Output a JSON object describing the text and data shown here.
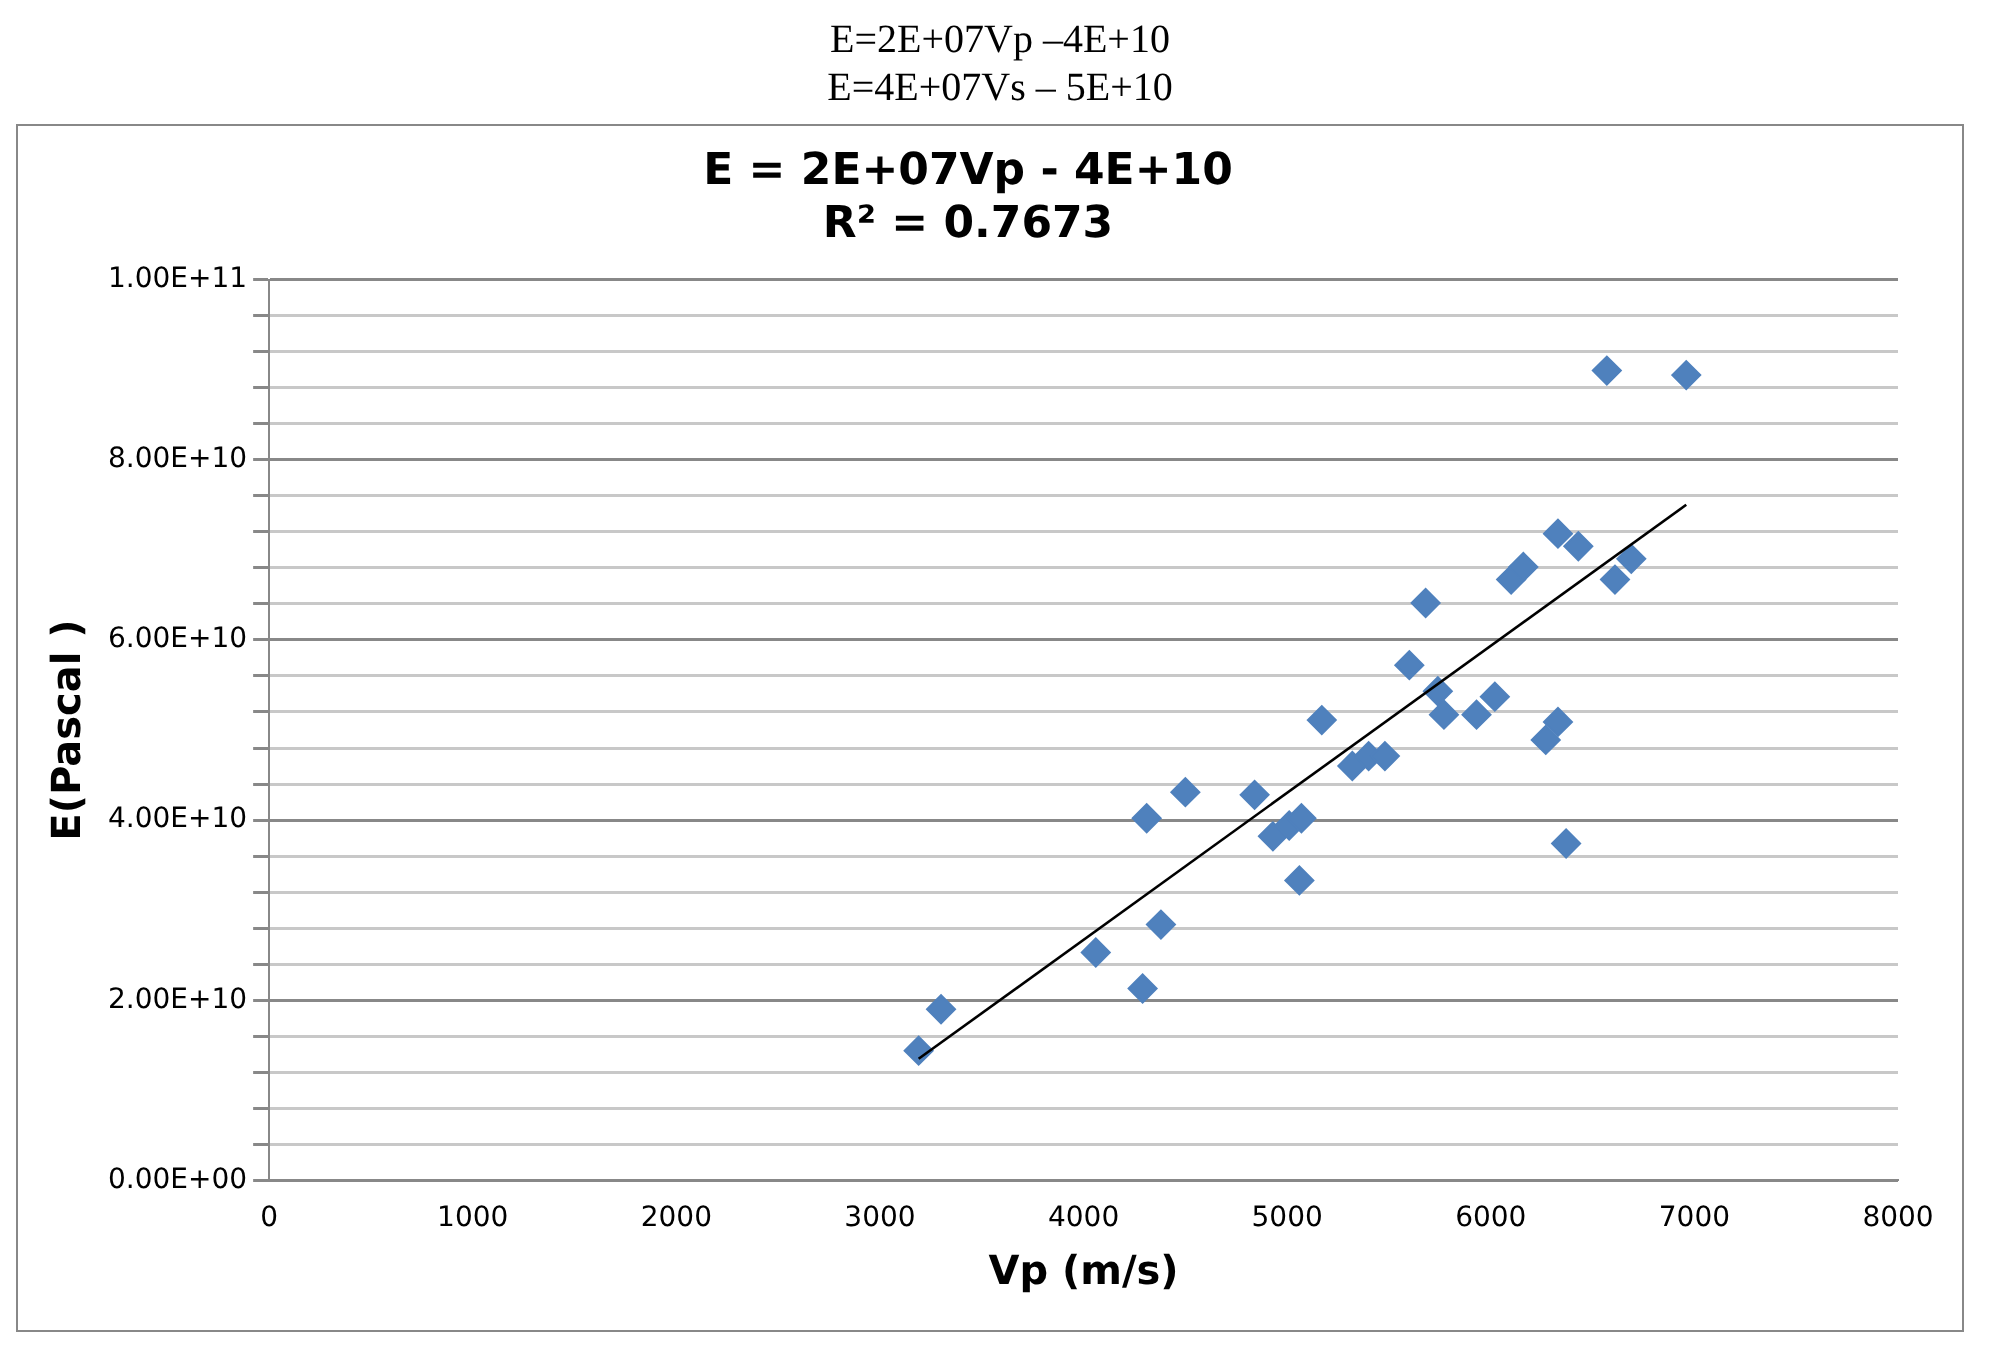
{
  "chart_data": {
    "type": "scatter",
    "title": "E = 2E+07Vp - 4E+10",
    "subtitle": "R² = 0.7673",
    "xlabel": "Vp (m/s)",
    "ylabel": "E(Pascal )",
    "annotations": [
      "E=2E+07Vp –4E+10",
      "E=4E+07Vs – 5E+10"
    ],
    "xlim": [
      0,
      8000
    ],
    "xticks": [
      0,
      1000,
      2000,
      3000,
      4000,
      5000,
      6000,
      7000,
      8000
    ],
    "ylim": [
      0,
      100000000000
    ],
    "yticks": [
      {
        "value": 0,
        "label": "0.00E+00"
      },
      {
        "value": 4000000000,
        "label": null
      },
      {
        "value": 8000000000,
        "label": null
      },
      {
        "value": 12000000000,
        "label": null
      },
      {
        "value": 16000000000,
        "label": null
      },
      {
        "value": 20000000000,
        "label": "2.00E+10"
      },
      {
        "value": 24000000000,
        "label": null
      },
      {
        "value": 28000000000,
        "label": null
      },
      {
        "value": 32000000000,
        "label": null
      },
      {
        "value": 36000000000,
        "label": null
      },
      {
        "value": 40000000000,
        "label": "4.00E+10"
      },
      {
        "value": 44000000000,
        "label": null
      },
      {
        "value": 48000000000,
        "label": null
      },
      {
        "value": 52000000000,
        "label": null
      },
      {
        "value": 56000000000,
        "label": null
      },
      {
        "value": 60000000000,
        "label": "6.00E+10"
      },
      {
        "value": 64000000000,
        "label": null
      },
      {
        "value": 68000000000,
        "label": null
      },
      {
        "value": 72000000000,
        "label": null
      },
      {
        "value": 76000000000,
        "label": null
      },
      {
        "value": 80000000000,
        "label": "8.00E+10"
      },
      {
        "value": 84000000000,
        "label": null
      },
      {
        "value": 88000000000,
        "label": null
      },
      {
        "value": 92000000000,
        "label": null
      },
      {
        "value": 96000000000,
        "label": null
      },
      {
        "value": 100000000000,
        "label": "1.00E+11"
      }
    ],
    "grid": "y",
    "legend": false,
    "marker": "diamond",
    "series": [
      {
        "color": "#4f81bd",
        "x": [
          3190,
          3300,
          4060,
          4290,
          4310,
          4380,
          4500,
          4840,
          4930,
          5010,
          5070,
          5060,
          5170,
          5320,
          5400,
          5480,
          5600,
          5680,
          5740,
          5770,
          5930,
          6020,
          6100,
          6160,
          6330,
          6430,
          6690,
          6610,
          6330,
          6270,
          6370,
          6570,
          6960
        ],
        "values": [
          14400000000,
          19000000000,
          25300000000,
          21300000000,
          40200000000,
          28400000000,
          43100000000,
          42800000000,
          38200000000,
          39400000000,
          40200000000,
          33300000000,
          51100000000,
          46000000000,
          47100000000,
          47100000000,
          57200000000,
          64100000000,
          54300000000,
          51700000000,
          51700000000,
          53700000000,
          66700000000,
          68100000000,
          71800000000,
          70400000000,
          69000000000,
          66700000000,
          50900000000,
          48900000000,
          37400000000,
          89900000000,
          89400000000
        ]
      },
      {
        "type": "line",
        "color": "#000000",
        "marker": "none",
        "x": [
          3190,
          6960
        ],
        "values": [
          13500000000,
          75000000000
        ]
      }
    ]
  }
}
